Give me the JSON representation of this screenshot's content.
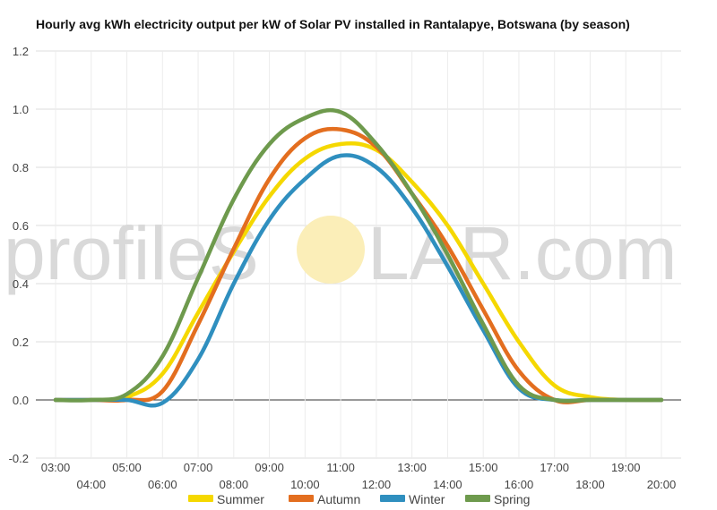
{
  "chart_data": {
    "type": "line",
    "title": "Hourly avg kWh electricity output per kW of Solar PV installed in Rantalapye, Botswana (by season)",
    "xlabel": "",
    "ylabel": "",
    "ylim": [
      -0.2,
      1.2
    ],
    "yticks": [
      "-0.2",
      "0.0",
      "0.2",
      "0.4",
      "0.6",
      "0.8",
      "1.0",
      "1.2"
    ],
    "x": [
      "03:00",
      "04:00",
      "05:00",
      "06:00",
      "07:00",
      "08:00",
      "09:00",
      "10:00",
      "11:00",
      "12:00",
      "13:00",
      "14:00",
      "15:00",
      "16:00",
      "17:00",
      "18:00",
      "19:00",
      "20:00"
    ],
    "grid": true,
    "legend_position": "bottom",
    "series": [
      {
        "name": "Summer",
        "color": "#f5d800",
        "values": [
          0,
          0,
          0.01,
          0.09,
          0.3,
          0.51,
          0.7,
          0.83,
          0.88,
          0.86,
          0.75,
          0.6,
          0.4,
          0.2,
          0.05,
          0.01,
          0,
          0
        ]
      },
      {
        "name": "Autumn",
        "color": "#e36e1f",
        "values": [
          0,
          0,
          0,
          0.03,
          0.26,
          0.52,
          0.76,
          0.9,
          0.93,
          0.87,
          0.71,
          0.53,
          0.31,
          0.1,
          0.0,
          0,
          0,
          0
        ]
      },
      {
        "name": "Winter",
        "color": "#2f8fbf",
        "values": [
          0,
          0,
          0,
          -0.01,
          0.14,
          0.4,
          0.62,
          0.76,
          0.84,
          0.8,
          0.66,
          0.46,
          0.24,
          0.04,
          0.0,
          0,
          0,
          0
        ]
      },
      {
        "name": "Spring",
        "color": "#6e9a4d",
        "values": [
          0,
          0,
          0.02,
          0.15,
          0.42,
          0.69,
          0.88,
          0.97,
          0.99,
          0.88,
          0.71,
          0.5,
          0.26,
          0.05,
          0.0,
          0,
          0,
          0
        ]
      }
    ]
  },
  "watermark": {
    "text_left": "profileS",
    "text_right": "LAR.com",
    "sun_color": "#fbeeb8"
  }
}
